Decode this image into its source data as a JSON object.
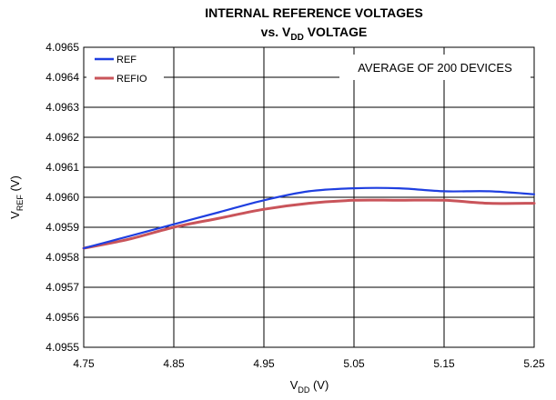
{
  "chart_data": {
    "type": "line",
    "title_line1": "INTERNAL REFERENCE VOLTAGES",
    "title_line2_prefix": "vs. V",
    "title_line2_sub": "DD",
    "title_line2_suffix": " VOLTAGE",
    "xlabel_main": "V",
    "xlabel_sub": "DD",
    "xlabel_suffix": " (V)",
    "ylabel_main": "V",
    "ylabel_sub": "REF",
    "ylabel_suffix": " (V)",
    "annotation": "AVERAGE OF 200 DEVICES",
    "xlim": [
      4.75,
      5.25
    ],
    "ylim": [
      4.0955,
      4.0965
    ],
    "xticks": [
      "4.75",
      "4.85",
      "4.95",
      "5.05",
      "5.15",
      "5.25"
    ],
    "xtick_values": [
      4.75,
      4.85,
      4.95,
      5.05,
      5.15,
      5.25
    ],
    "yticks": [
      "4.0965",
      "4.0964",
      "4.0963",
      "4.0962",
      "4.0961",
      "4.0960",
      "4.0959",
      "4.0958",
      "4.0957",
      "4.0956",
      "4.0955"
    ],
    "ytick_values": [
      4.0965,
      4.0964,
      4.0963,
      4.0962,
      4.0961,
      4.096,
      4.0959,
      4.0958,
      4.0957,
      4.0956,
      4.0955
    ],
    "grid": true,
    "legend_position": "top-left",
    "series": [
      {
        "name": "REF",
        "color": "#1f3fe0",
        "x": [
          4.75,
          4.8,
          4.85,
          4.9,
          4.95,
          5.0,
          5.05,
          5.1,
          5.15,
          5.2,
          5.25
        ],
        "y": [
          4.09583,
          4.09587,
          4.09591,
          4.09595,
          4.09599,
          4.09602,
          4.09603,
          4.09603,
          4.09602,
          4.09602,
          4.09601
        ]
      },
      {
        "name": "REFIO",
        "color": "#c9545a",
        "x": [
          4.75,
          4.8,
          4.85,
          4.9,
          4.95,
          5.0,
          5.05,
          5.1,
          5.15,
          5.2,
          5.25
        ],
        "y": [
          4.09583,
          4.09586,
          4.0959,
          4.09593,
          4.09596,
          4.09598,
          4.09599,
          4.09599,
          4.09599,
          4.09598,
          4.09598
        ]
      }
    ]
  }
}
